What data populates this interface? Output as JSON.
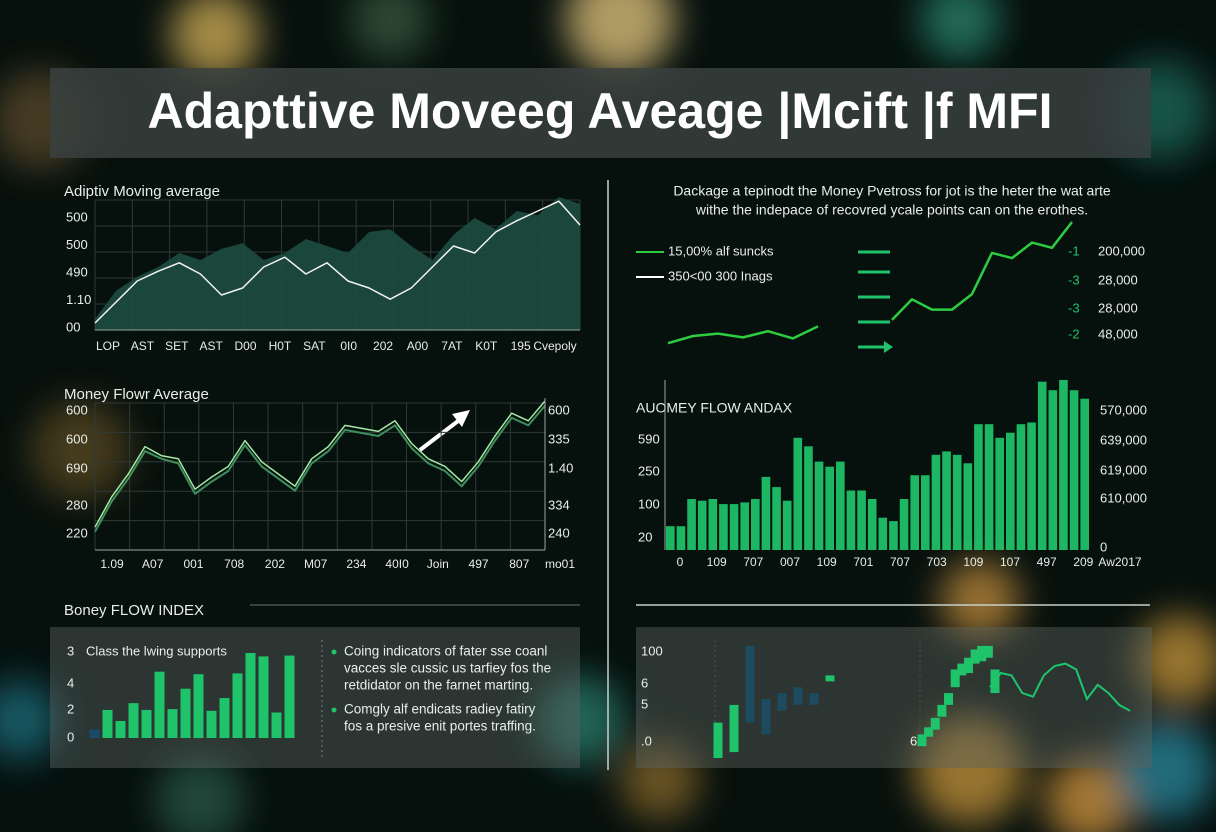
{
  "title": "Adapttive Moveeg Aveage |Mcift |f MFI",
  "chart_data": [
    {
      "type": "area_line",
      "title": "Adiptiv Moving average",
      "y_labels": [
        "500",
        "500",
        "490",
        "1.10",
        "00"
      ],
      "x_labels": [
        "LOP",
        "AST",
        "SET",
        "AST",
        "D00",
        "H0T",
        "SAT",
        "0I0",
        "202",
        "A00",
        "7AT",
        "K0T",
        "195",
        "Cvepoly"
      ],
      "ylim": [
        0,
        100
      ],
      "series": [
        {
          "color": "#1d4d40",
          "values": [
            8,
            28,
            38,
            45,
            55,
            50,
            58,
            62,
            50,
            55,
            65,
            60,
            55,
            70,
            72,
            60,
            50,
            68,
            80,
            72,
            85,
            82,
            95,
            90
          ]
        },
        {
          "color": "#f2f2f2",
          "values": [
            5,
            20,
            35,
            42,
            48,
            40,
            25,
            30,
            45,
            52,
            40,
            48,
            35,
            30,
            22,
            30,
            45,
            60,
            55,
            70,
            78,
            85,
            92,
            75
          ]
        }
      ]
    },
    {
      "type": "line",
      "title": "Money Flowr Average",
      "y_labels": [
        "600",
        "600",
        "690",
        "280",
        "220"
      ],
      "y2_labels": [
        "600",
        "335",
        "1.40",
        "334",
        "240"
      ],
      "x_labels": [
        "1.09",
        "A07",
        "001",
        "708",
        "202",
        "M07",
        "234",
        "40I0",
        "Join",
        "497",
        "807",
        "mo01"
      ],
      "ylim": [
        0,
        100
      ],
      "series": [
        {
          "color": "#a6e8a6",
          "values": [
            15,
            35,
            50,
            68,
            62,
            60,
            40,
            48,
            55,
            72,
            58,
            50,
            42,
            60,
            68,
            82,
            80,
            78,
            85,
            70,
            60,
            55,
            45,
            58,
            75,
            90,
            85,
            98
          ]
        },
        {
          "color": "#3e8f5c",
          "values": [
            12,
            32,
            47,
            65,
            60,
            57,
            37,
            45,
            52,
            69,
            55,
            47,
            39,
            57,
            65,
            79,
            77,
            75,
            82,
            67,
            57,
            52,
            42,
            55,
            72,
            87,
            82,
            95
          ]
        }
      ]
    },
    {
      "type": "line_legend",
      "description": [
        "Dackage a tepinodt the Money Pvetross for jot is the heter the wat arte",
        "withe the indepace of recovred ycale points can on the erothes."
      ],
      "legend": [
        {
          "label": "15,00% alf suncks",
          "color": "#2ecc40"
        },
        {
          "label": "350<00 300 Inags",
          "color": "#ffffff"
        }
      ],
      "right_codes": [
        "-1",
        "-3",
        "-3",
        "-2"
      ],
      "right_values": [
        "200,000",
        "28,000",
        "28,000",
        "48,000"
      ],
      "ylim": [
        0,
        100
      ],
      "series": [
        {
          "color": "#2ecc40",
          "values": [
            10,
            25,
            30,
            22,
            35,
            20,
            45
          ]
        },
        {
          "color": "#2ecc40",
          "values": [
            5,
            25,
            15,
            15,
            30,
            70,
            65,
            80,
            75,
            100
          ]
        }
      ]
    },
    {
      "type": "bar",
      "title": "AUOMEY FLOW ANDAX",
      "y_labels": [
        "590",
        "250",
        "100",
        "20"
      ],
      "y2_labels": [
        "570,000",
        "639,000",
        "619,000",
        "610,000",
        "0"
      ],
      "x_labels": [
        "0",
        "109",
        "707",
        "007",
        "109",
        "701",
        "707",
        "703",
        "109",
        "107",
        "497",
        "209",
        "Aw2017"
      ],
      "ylim": [
        0,
        100
      ],
      "color": "#1fc46a",
      "values": [
        14,
        14,
        30,
        29,
        30,
        27,
        27,
        28,
        30,
        43,
        37,
        29,
        66,
        61,
        52,
        49,
        52,
        35,
        35,
        30,
        19,
        17,
        30,
        44,
        44,
        56,
        58,
        56,
        51,
        74,
        74,
        66,
        69,
        74,
        75,
        99,
        94,
        100,
        94,
        89
      ]
    },
    {
      "type": "bar_panel",
      "title": "Boney FLOW INDEX",
      "legend_text": "Class the lwing supports",
      "y_labels": [
        "3",
        "4",
        "2",
        "0"
      ],
      "ylim": [
        0,
        100
      ],
      "color": "#1fc46a",
      "values": [
        10,
        33,
        20,
        41,
        33,
        78,
        34,
        58,
        75,
        32,
        47,
        76,
        100,
        96,
        30,
        97
      ],
      "notes": [
        [
          "Coing indicators of fater sse coanl",
          "vacces sle cussic us tarfiey fos the",
          "retdidator on the farnet marting."
        ],
        [
          "Comgly alf endicats radiey fatiry",
          "fos a presive enit portes traffing."
        ]
      ]
    },
    {
      "type": "candlestick",
      "y_labels": [
        "100",
        "6",
        "5",
        ".0"
      ],
      "x_label": "6",
      "ylim": [
        0,
        100
      ],
      "open": [
        0,
        5,
        95,
        50,
        55,
        60,
        55,
        65,
        10,
        18,
        24,
        35,
        45,
        60,
        70,
        72,
        80,
        82,
        85,
        55
      ],
      "close": [
        30,
        45,
        30,
        20,
        40,
        45,
        45,
        70,
        20,
        26,
        34,
        45,
        55,
        75,
        80,
        85,
        92,
        95,
        95,
        75
      ],
      "line": [
        60,
        72,
        70,
        55,
        52,
        70,
        78,
        80,
        75,
        50,
        62,
        55,
        45,
        40
      ]
    }
  ]
}
